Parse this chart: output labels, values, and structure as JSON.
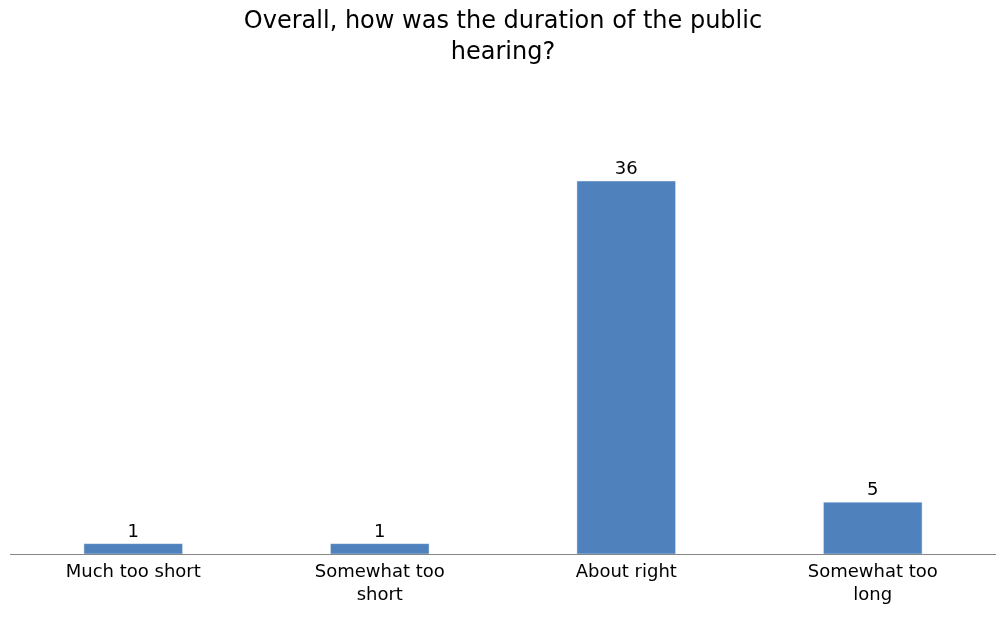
{
  "chart_data": {
    "type": "bar",
    "title": "Overall, how was the duration of the public hearing?",
    "categories": [
      "Much too short",
      "Somewhat too short",
      "About right",
      "Somewhat too long"
    ],
    "values": [
      1,
      1,
      36,
      5
    ],
    "color": "#4f81bd",
    "data_labels": true,
    "legend": false
  }
}
